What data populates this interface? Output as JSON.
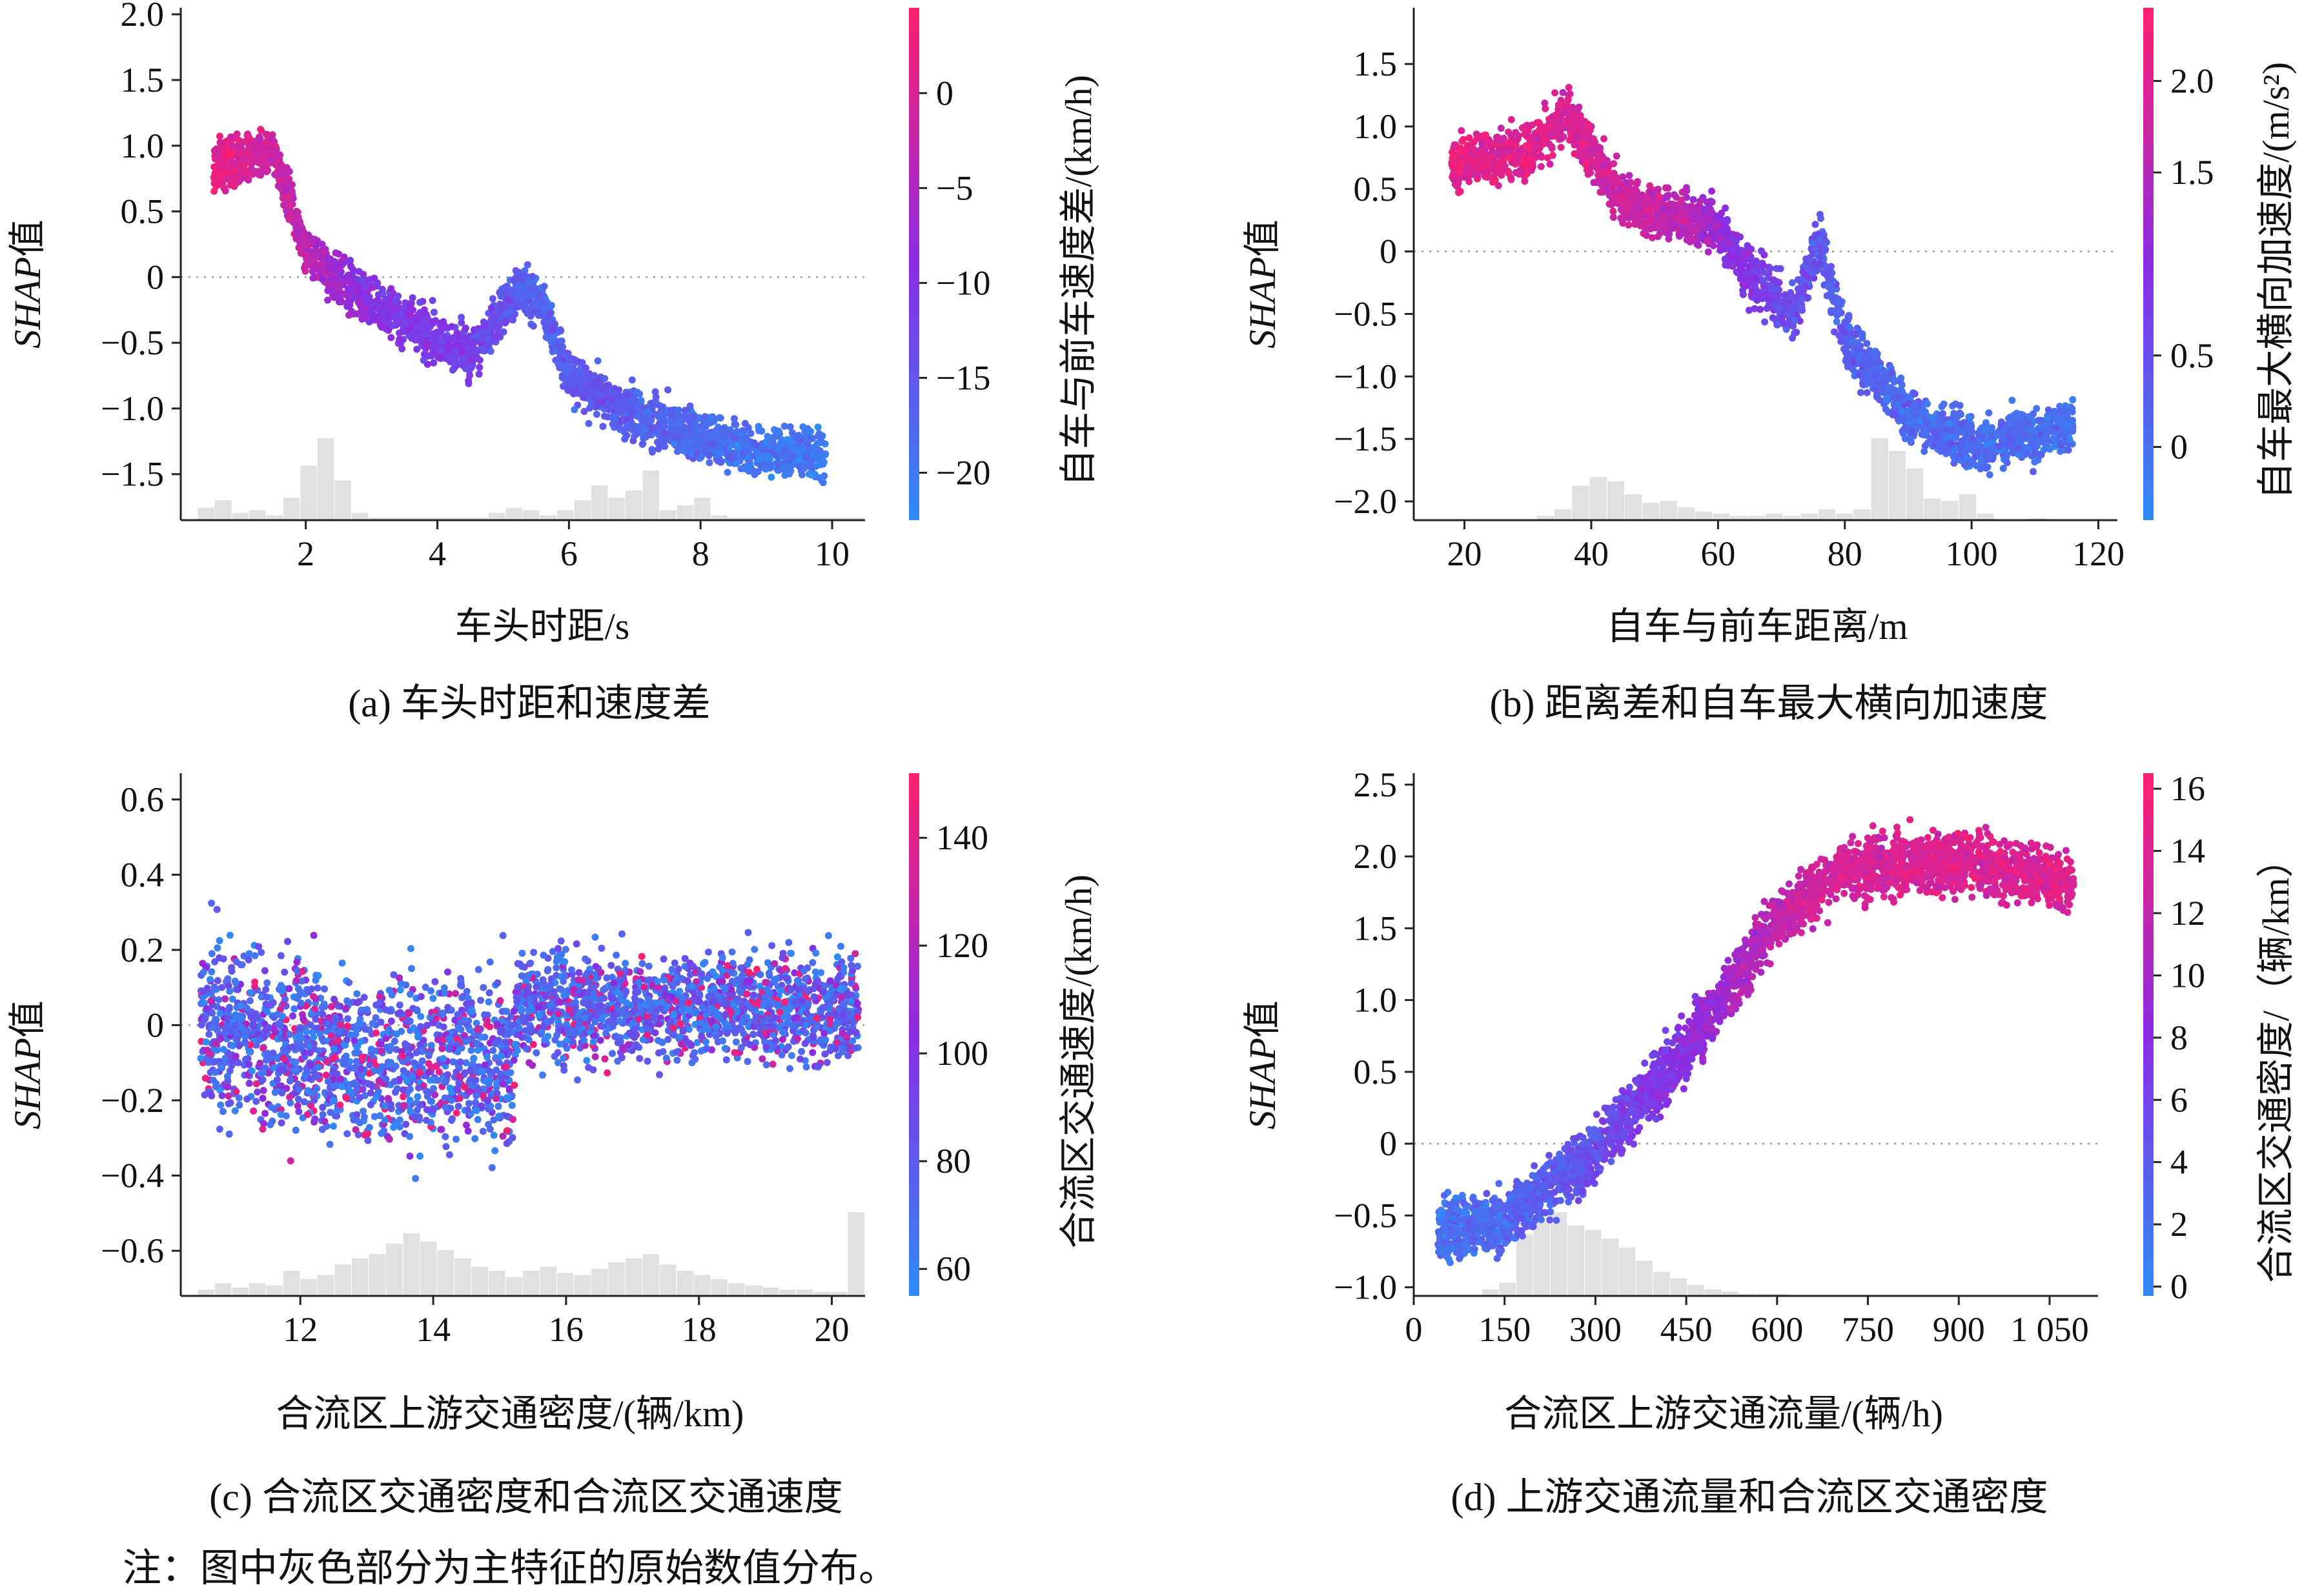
{
  "figure": {
    "note": "注：图中灰色部分为主特征的原始数值分布。"
  },
  "chart_data": [
    {
      "id": "a",
      "type": "scatter",
      "caption": "(a) 车头时距和速度差",
      "xlabel": "车头时距/s",
      "ylabel_main": "SHAP",
      "ylabel_suffix": "值",
      "xlim": [
        0.1,
        10.5
      ],
      "ylim": [
        -1.85,
        2.05
      ],
      "xticks": [
        2,
        4,
        6,
        8,
        10
      ],
      "xtick_labels": [
        "2",
        "4",
        "6",
        "8",
        "10"
      ],
      "yticks": [
        -1.5,
        -1.0,
        -0.5,
        0,
        0.5,
        1.0,
        1.5,
        2.0
      ],
      "ytick_labels": [
        "−1.5",
        "−1.0",
        "−0.5",
        "0",
        "0.5",
        "1.0",
        "1.5",
        "2.0"
      ],
      "colorbar": {
        "label": "自车与前车速度差/(km/h)",
        "range": [
          -22.5,
          4.5
        ],
        "ticks": [
          0,
          -5,
          -10,
          -15,
          -20
        ],
        "tick_labels": [
          "0",
          "−5",
          "−10",
          "−15",
          "−20"
        ]
      },
      "trend": [
        [
          0.6,
          0.85
        ],
        [
          1.5,
          0.95
        ],
        [
          2.0,
          0.2
        ],
        [
          3.0,
          -0.2
        ],
        [
          4.5,
          -0.6
        ],
        [
          5.2,
          -0.1
        ],
        [
          5.6,
          -0.2
        ],
        [
          6.0,
          -0.75
        ],
        [
          7.0,
          -1.05
        ],
        [
          8.5,
          -1.3
        ],
        [
          9.9,
          -1.35
        ]
      ],
      "color_trend": [
        [
          0.6,
          2.0
        ],
        [
          2.0,
          -3.0
        ],
        [
          3.0,
          -10.0
        ],
        [
          4.5,
          -12.0
        ],
        [
          5.5,
          -17.0
        ],
        [
          6.5,
          -15.0
        ],
        [
          8.0,
          -18.0
        ],
        [
          9.9,
          -20.0
        ]
      ],
      "point_spread": 0.18,
      "point_count": 2600,
      "histogram": [
        0,
        0.5,
        0.8,
        0.3,
        0.4,
        0.2,
        0.9,
        2.2,
        3.3,
        1.6,
        0.3,
        0.1,
        0.1,
        0.1,
        0.1,
        0.1,
        0.1,
        0.1,
        0.3,
        0.5,
        0.4,
        0.2,
        0.4,
        0.8,
        1.4,
        0.9,
        1.2,
        2.0,
        0.4,
        0.6,
        0.9,
        0.2,
        0.1,
        0.1,
        0.1,
        0.1,
        0.1,
        0.1,
        0.1,
        0.1
      ]
    },
    {
      "id": "b",
      "type": "scatter",
      "caption": "(b) 距离差和自车最大横向加速度",
      "xlabel": "自车与前车距离/m",
      "ylabel_main": "SHAP",
      "ylabel_suffix": "值",
      "xlim": [
        12,
        123
      ],
      "ylim": [
        -2.15,
        1.95
      ],
      "xticks": [
        20,
        40,
        60,
        80,
        100,
        120
      ],
      "xtick_labels": [
        "20",
        "40",
        "60",
        "80",
        "100",
        "120"
      ],
      "yticks": [
        -2.0,
        -1.5,
        -1.0,
        -0.5,
        0,
        0.5,
        1.0,
        1.5
      ],
      "ytick_labels": [
        "−2.0",
        "−1.5",
        "−1.0",
        "−0.5",
        "0",
        "0.5",
        "1.0",
        "1.5"
      ],
      "colorbar": {
        "label": "自车最大横向加速度/(m/s²)",
        "range": [
          -0.4,
          2.4
        ],
        "ticks": [
          2.0,
          1.5,
          0.5,
          0
        ],
        "tick_labels": [
          "2.0",
          "1.5",
          "0.5",
          "0"
        ]
      },
      "trend": [
        [
          18,
          0.7
        ],
        [
          30,
          0.8
        ],
        [
          36,
          1.1
        ],
        [
          45,
          0.4
        ],
        [
          60,
          0.2
        ],
        [
          65,
          -0.2
        ],
        [
          72,
          -0.5
        ],
        [
          76,
          0.1
        ],
        [
          80,
          -0.7
        ],
        [
          90,
          -1.3
        ],
        [
          100,
          -1.55
        ],
        [
          116,
          -1.4
        ]
      ],
      "color_trend": [
        [
          18,
          2.1
        ],
        [
          40,
          1.9
        ],
        [
          55,
          1.6
        ],
        [
          62,
          1.0
        ],
        [
          70,
          0.6
        ],
        [
          80,
          0.2
        ],
        [
          95,
          0.1
        ],
        [
          116,
          0.0
        ]
      ],
      "point_spread": 0.2,
      "point_count": 2600,
      "histogram": [
        0,
        0,
        0,
        0,
        0,
        0,
        0,
        0.2,
        0.5,
        1.6,
        2.0,
        1.8,
        1.2,
        0.8,
        0.9,
        0.6,
        0.4,
        0.3,
        0.2,
        0.2,
        0.3,
        0.2,
        0.3,
        0.5,
        0.3,
        0.5,
        3.8,
        3.2,
        2.4,
        1.0,
        0.9,
        1.2,
        0.3,
        0,
        0,
        0.1,
        0,
        0,
        0,
        0
      ]
    },
    {
      "id": "c",
      "type": "scatter",
      "caption": "(c) 合流区交通密度和合流区交通速度",
      "xlabel": "合流区上游交通密度/(辆/km)",
      "ylabel_main": "SHAP",
      "ylabel_suffix": "值",
      "xlim": [
        10.2,
        20.5
      ],
      "ylim": [
        -0.72,
        0.67
      ],
      "xticks": [
        12,
        14,
        16,
        18,
        20
      ],
      "xtick_labels": [
        "12",
        "14",
        "16",
        "18",
        "20"
      ],
      "yticks": [
        -0.6,
        -0.4,
        -0.2,
        0,
        0.2,
        0.4,
        0.6
      ],
      "ytick_labels": [
        "−0.6",
        "−0.4",
        "−0.2",
        "0",
        "0.2",
        "0.4",
        "0.6"
      ],
      "colorbar": {
        "label": "合流区交通速度/(km/h)",
        "range": [
          55,
          152
        ],
        "ticks": [
          140,
          120,
          100,
          80,
          60
        ],
        "tick_labels": [
          "140",
          "120",
          "100",
          "80",
          "60"
        ]
      },
      "trend": [
        [
          10.5,
          0.0
        ],
        [
          13.0,
          -0.1
        ],
        [
          15.2,
          -0.1
        ],
        [
          15.3,
          0.05
        ],
        [
          20.4,
          0.05
        ]
      ],
      "color_trend": [
        [
          10.5,
          85
        ],
        [
          20.4,
          85
        ]
      ],
      "point_spread": 0.17,
      "point_count": 3000,
      "histogram": [
        0,
        0.3,
        0.6,
        0.4,
        0.6,
        0.5,
        1.2,
        0.8,
        1.0,
        1.5,
        1.8,
        2.0,
        2.5,
        3.0,
        2.6,
        2.2,
        1.8,
        1.4,
        1.2,
        0.9,
        1.2,
        1.4,
        1.1,
        1.0,
        1.3,
        1.6,
        1.8,
        2.0,
        1.5,
        1.2,
        1.0,
        0.8,
        0.6,
        0.5,
        0.4,
        0.3,
        0.3,
        0.2,
        0.2,
        4.0
      ]
    },
    {
      "id": "d",
      "type": "scatter",
      "caption": "(d) 上游交通流量和合流区交通密度",
      "xlabel": "合流区上游交通流量/(辆/h)",
      "ylabel_main": "SHAP",
      "ylabel_suffix": "值",
      "xlim": [
        0,
        1130
      ],
      "ylim": [
        -1.06,
        2.58
      ],
      "xticks": [
        0,
        150,
        300,
        450,
        600,
        750,
        900,
        1050
      ],
      "xtick_labels": [
        "0",
        "150",
        "300",
        "450",
        "600",
        "750",
        "900",
        "1 050"
      ],
      "yticks": [
        -1.0,
        -0.5,
        0,
        0.5,
        1.0,
        1.5,
        2.0,
        2.5
      ],
      "ytick_labels": [
        "−1.0",
        "−0.5",
        "0",
        "0.5",
        "1.0",
        "1.5",
        "2.0",
        "2.5"
      ],
      "colorbar": {
        "label": "合流区交通密度/（辆/km）",
        "range": [
          -0.3,
          16.5
        ],
        "ticks": [
          16,
          14,
          12,
          10,
          8,
          6,
          4,
          2,
          0
        ],
        "tick_labels": [
          "16",
          "14",
          "12",
          "10",
          "8",
          "6",
          "4",
          "2",
          "0"
        ]
      },
      "trend": [
        [
          40,
          -0.6
        ],
        [
          150,
          -0.55
        ],
        [
          300,
          -0.05
        ],
        [
          450,
          0.65
        ],
        [
          600,
          1.55
        ],
        [
          700,
          1.9
        ],
        [
          800,
          1.95
        ],
        [
          900,
          1.95
        ],
        [
          1000,
          1.9
        ],
        [
          1090,
          1.8
        ]
      ],
      "color_trend": [
        [
          40,
          2
        ],
        [
          150,
          3
        ],
        [
          300,
          5
        ],
        [
          450,
          8
        ],
        [
          550,
          11
        ],
        [
          650,
          13
        ],
        [
          800,
          14
        ],
        [
          1090,
          14
        ]
      ],
      "point_spread": 0.2,
      "point_count": 3000,
      "histogram": [
        0,
        0,
        0,
        0,
        0.3,
        0.6,
        2.8,
        3.4,
        3.8,
        3.2,
        3.0,
        2.6,
        2.2,
        1.6,
        1.1,
        0.8,
        0.5,
        0.3,
        0.2,
        0.1,
        0.1,
        0.1,
        0,
        0,
        0,
        0,
        0,
        0,
        0,
        0,
        0,
        0,
        0,
        0,
        0,
        0,
        0,
        0,
        0,
        0
      ]
    }
  ],
  "colors": {
    "low": "#2f8cf6",
    "mid": "#8a2be2",
    "high": "#ff1f6e",
    "hist": "#e0e0e0",
    "axis": "#222222"
  }
}
